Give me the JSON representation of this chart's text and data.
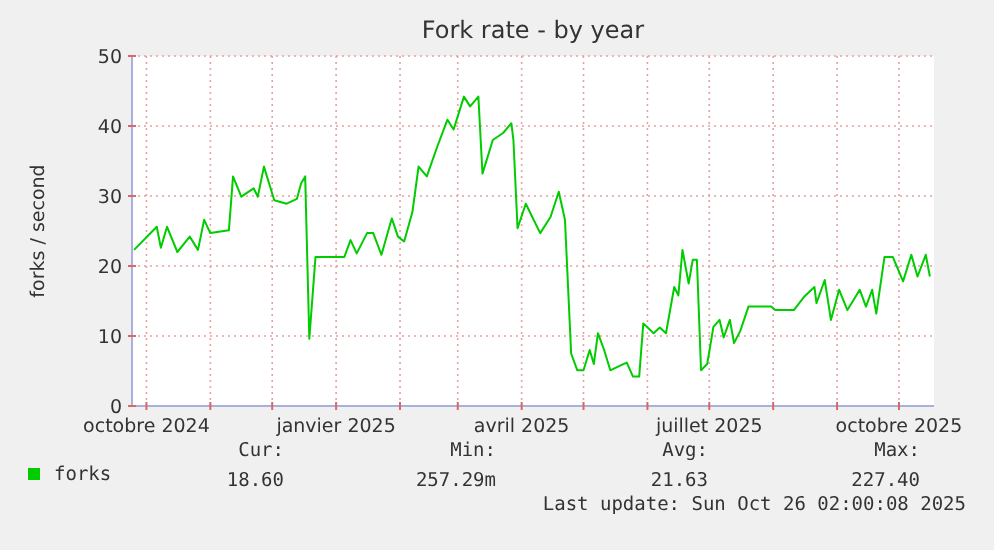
{
  "chart_data": {
    "type": "line",
    "title": "Fork rate - by year",
    "ylabel": "forks / second",
    "x": [
      "2024-09-25",
      "2024-10-06",
      "2024-10-08",
      "2024-10-11",
      "2024-10-16",
      "2024-10-22",
      "2024-10-26",
      "2024-10-29",
      "2024-11-01",
      "2024-11-10",
      "2024-11-12",
      "2024-11-16",
      "2024-11-22",
      "2024-11-24",
      "2024-11-27",
      "2024-12-02",
      "2024-12-08",
      "2024-12-13",
      "2024-12-15",
      "2024-12-17",
      "2024-12-19",
      "2024-12-22",
      "2025-01-05",
      "2025-01-08",
      "2025-01-11",
      "2025-01-16",
      "2025-01-19",
      "2025-01-23",
      "2025-01-28",
      "2025-01-31",
      "2025-02-03",
      "2025-02-07",
      "2025-02-10",
      "2025-02-14",
      "2025-02-19",
      "2025-02-24",
      "2025-02-27",
      "2025-03-04",
      "2025-03-07",
      "2025-03-11",
      "2025-03-13",
      "2025-03-18",
      "2025-03-23",
      "2025-03-27",
      "2025-03-28",
      "2025-03-30",
      "2025-04-03",
      "2025-04-10",
      "2025-04-15",
      "2025-04-19",
      "2025-04-22",
      "2025-04-25",
      "2025-04-28",
      "2025-05-01",
      "2025-05-04",
      "2025-05-06",
      "2025-05-08",
      "2025-05-11",
      "2025-05-14",
      "2025-05-19",
      "2025-05-22",
      "2025-05-25",
      "2025-05-28",
      "2025-05-30",
      "2025-06-04",
      "2025-06-07",
      "2025-06-10",
      "2025-06-14",
      "2025-06-16",
      "2025-06-18",
      "2025-06-21",
      "2025-06-23",
      "2025-06-25",
      "2025-06-27",
      "2025-06-30",
      "2025-07-03",
      "2025-07-06",
      "2025-07-08",
      "2025-07-11",
      "2025-07-13",
      "2025-07-16",
      "2025-07-20",
      "2025-07-31",
      "2025-08-02",
      "2025-08-11",
      "2025-08-16",
      "2025-08-21",
      "2025-08-22",
      "2025-08-26",
      "2025-08-29",
      "2025-09-02",
      "2025-09-06",
      "2025-09-12",
      "2025-09-15",
      "2025-09-18",
      "2025-09-20",
      "2025-09-24",
      "2025-09-28",
      "2025-10-03",
      "2025-10-07",
      "2025-10-10",
      "2025-10-14",
      "2025-10-16"
    ],
    "series": [
      {
        "name": "forks",
        "color": "#00cc00",
        "values": [
          22.3,
          25.6,
          22.6,
          25.6,
          22,
          24.2,
          22.3,
          26.6,
          24.7,
          25.1,
          32.8,
          29.9,
          31.1,
          29.9,
          34.2,
          29.4,
          28.9,
          29.6,
          31.8,
          32.8,
          9.6,
          21.3,
          21.3,
          23.7,
          21.8,
          24.7,
          24.7,
          21.6,
          26.8,
          24.2,
          23.5,
          27.7,
          34.2,
          32.8,
          37,
          40.9,
          39.5,
          44.2,
          42.8,
          44.2,
          33.2,
          38,
          39,
          40.4,
          38,
          25.4,
          28.9,
          24.7,
          27,
          30.6,
          26.6,
          7.5,
          5.1,
          5.1,
          8,
          6,
          10.4,
          8,
          5.1,
          5.8,
          6.2,
          4.2,
          4.2,
          11.8,
          10.4,
          11.2,
          10.4,
          17,
          15.8,
          22.3,
          17.5,
          20.9,
          20.9,
          5.1,
          6,
          11.3,
          12.3,
          9.8,
          12.3,
          9,
          10.7,
          14.2,
          14.2,
          13.7,
          13.7,
          15.6,
          17,
          14.7,
          18,
          12.3,
          16.6,
          13.7,
          16.6,
          14.2,
          16.6,
          13.2,
          21.3,
          21.3,
          17.8,
          21.6,
          18.5,
          21.6,
          18.5
        ]
      }
    ],
    "xlim": [
      "2024-09-24",
      "2025-10-18"
    ],
    "xticks": [
      {
        "value": "2024-10-01",
        "label": "octobre 2024"
      },
      {
        "value": "2024-11-01",
        "label": null
      },
      {
        "value": "2024-12-01",
        "label": null
      },
      {
        "value": "2025-01-01",
        "label": "janvier 2025"
      },
      {
        "value": "2025-02-01",
        "label": null
      },
      {
        "value": "2025-03-01",
        "label": null
      },
      {
        "value": "2025-04-01",
        "label": "avril 2025"
      },
      {
        "value": "2025-05-01",
        "label": null
      },
      {
        "value": "2025-06-01",
        "label": null
      },
      {
        "value": "2025-07-01",
        "label": "juillet 2025"
      },
      {
        "value": "2025-08-01",
        "label": null
      },
      {
        "value": "2025-09-01",
        "label": null
      },
      {
        "value": "2025-10-01",
        "label": "octobre 2025"
      }
    ],
    "ylim": [
      0,
      50
    ],
    "yticks": [
      0,
      10,
      20,
      30,
      40,
      50
    ],
    "grid": true,
    "legend": "bottom left",
    "annotations": [
      "Cur:",
      "18.60",
      "Min:",
      "257.29m",
      "Avg:",
      "21.63",
      "Max:",
      "227.40",
      "Last update: Sun Oct 26 02:00:08 2025"
    ]
  }
}
